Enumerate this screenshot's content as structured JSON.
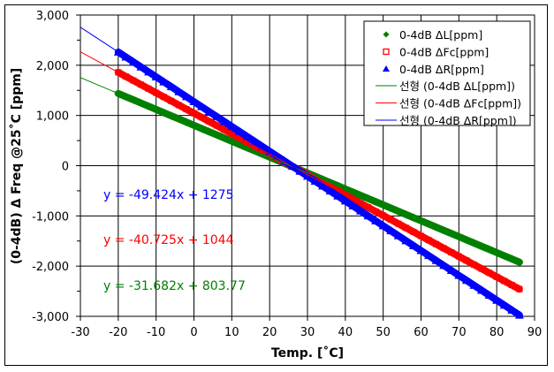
{
  "chart_data": {
    "type": "scatter",
    "title": "",
    "xlabel": "Temp. [˚C]",
    "ylabel": "(0-4dB) Δ Freq @25˚C [ppm]",
    "xlim": [
      -30,
      90
    ],
    "ylim": [
      -3000,
      3000
    ],
    "xticks": [
      "-30",
      "-20",
      "-10",
      "0",
      "10",
      "20",
      "30",
      "40",
      "50",
      "60",
      "70",
      "80",
      "90"
    ],
    "yticks": [
      "3,000",
      "2,000",
      "1,000",
      "0",
      "-1,000",
      "-2,000",
      "-3,000"
    ],
    "grid": true,
    "legend_position": "top-right",
    "x": [
      -20,
      -18,
      -16,
      -14,
      -12,
      -10,
      -8,
      -6,
      -4,
      -2,
      0,
      2,
      4,
      6,
      8,
      10,
      12,
      14,
      16,
      18,
      20,
      22,
      24,
      26,
      28,
      30,
      32,
      34,
      36,
      38,
      40,
      42,
      44,
      46,
      48,
      50,
      52,
      54,
      56,
      58,
      60,
      62,
      64,
      66,
      68,
      70,
      72,
      74,
      76,
      78,
      80,
      82,
      84,
      86
    ],
    "series": [
      {
        "name": "0-4dB ΔL[ppm]",
        "color": "#008000",
        "marker": "diamond",
        "values": [
          1437,
          1374,
          1311,
          1247,
          1184,
          1121,
          1057,
          994,
          931,
          867,
          804,
          740,
          677,
          614,
          550,
          487,
          424,
          360,
          297,
          234,
          170,
          107,
          43,
          -20,
          -83,
          -147,
          -210,
          -273,
          -337,
          -400,
          -464,
          -527,
          -590,
          -654,
          -717,
          -780,
          -844,
          -907,
          -970,
          -1034,
          -1097,
          -1160,
          -1224,
          -1287,
          -1350,
          -1414,
          -1477,
          -1540,
          -1604,
          -1667,
          -1731,
          -1794,
          -1857,
          -1921
        ]
      },
      {
        "name": "0-4dB ΔFc[ppm]",
        "color": "#ff0000",
        "marker": "square",
        "values": [
          1859,
          1777,
          1696,
          1614,
          1533,
          1451,
          1370,
          1288,
          1207,
          1125,
          1044,
          963,
          881,
          800,
          718,
          637,
          555,
          474,
          392,
          311,
          229,
          148,
          67,
          -15,
          -96,
          -178,
          -259,
          -341,
          -422,
          -504,
          -585,
          -666,
          -748,
          -829,
          -911,
          -992,
          -1074,
          -1155,
          -1237,
          -1318,
          -1400,
          -1481,
          -1562,
          -1644,
          -1725,
          -1807,
          -1888,
          -1970,
          -2051,
          -2133,
          -2214,
          -2296,
          -2377,
          -2458
        ]
      },
      {
        "name": "0-4dB ΔR[ppm]",
        "color": "#0000ff",
        "marker": "triangle",
        "values": [
          2263,
          2165,
          2066,
          1967,
          1868,
          1769,
          1670,
          1572,
          1473,
          1374,
          1275,
          1176,
          1077,
          979,
          880,
          781,
          682,
          583,
          484,
          385,
          287,
          188,
          89,
          -10,
          -109,
          -208,
          -307,
          -405,
          -504,
          -603,
          -702,
          -801,
          -900,
          -999,
          -1097,
          -1196,
          -1295,
          -1394,
          -1493,
          -1592,
          -1690,
          -1789,
          -1888,
          -1987,
          -2086,
          -2185,
          -2283,
          -2382,
          -2481,
          -2580,
          -2679,
          -2778,
          -2876,
          -2975
        ]
      }
    ],
    "trendlines": [
      {
        "name": "선형 (0-4dB ΔL[ppm])",
        "color": "#008000",
        "slope": -31.682,
        "intercept": 803.77,
        "x_range": [
          -30,
          86
        ],
        "equation": "y = -31.682x + 803.77"
      },
      {
        "name": "선형 (0-4dB ΔFc[ppm])",
        "color": "#ff0000",
        "slope": -40.725,
        "intercept": 1044,
        "x_range": [
          -30,
          86
        ],
        "equation": "y = -40.725x + 1044"
      },
      {
        "name": "선형 (0-4dB ΔR[ppm])",
        "color": "#0000ff",
        "slope": -49.424,
        "intercept": 1275,
        "x_range": [
          -30,
          86
        ],
        "equation": "y = -49.424x + 1275"
      }
    ]
  }
}
